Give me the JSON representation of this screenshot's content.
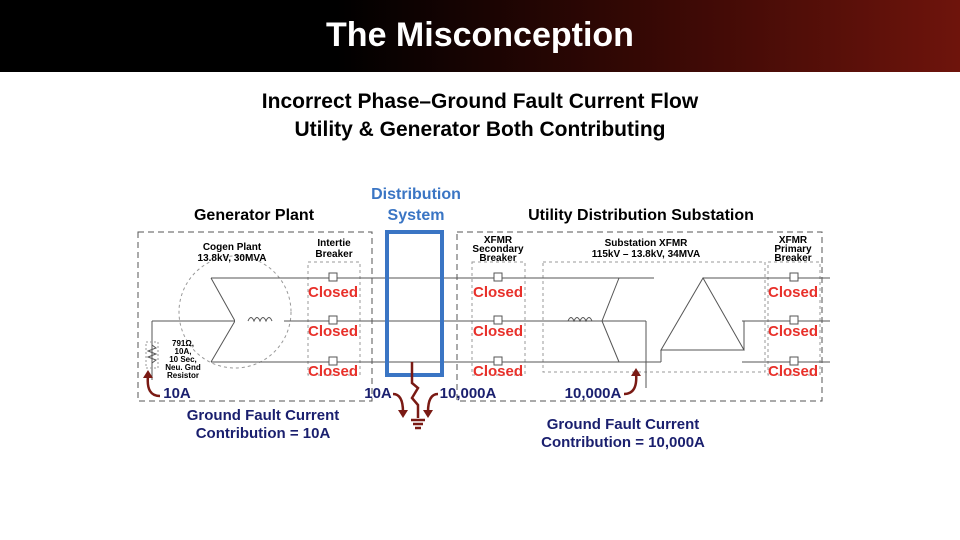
{
  "header": {
    "title": "The Misconception"
  },
  "subtitle": {
    "line1": "Incorrect Phase–Ground Fault Current Flow",
    "line2": "Utility & Generator Both Contributing"
  },
  "sections": {
    "generator_plant": "Generator Plant",
    "distribution_system": [
      "Distribution",
      "System"
    ],
    "utility_substation": "Utility Distribution Substation"
  },
  "generator": {
    "name": "Cogen Plant",
    "rating": "13.8kV, 30MVA",
    "resistor": [
      "791Ω,",
      "10A,",
      "10 Sec,",
      "Neu. Gnd",
      "Resistor"
    ]
  },
  "breakers": {
    "intertie": {
      "label": [
        "Intertie",
        "Breaker"
      ],
      "states": [
        "Closed",
        "Closed",
        "Closed"
      ]
    },
    "xfmr_secondary": {
      "label": [
        "XFMR",
        "Secondary",
        "Breaker"
      ],
      "states": [
        "Closed",
        "Closed",
        "Closed"
      ]
    },
    "xfmr_primary": {
      "label": [
        "XFMR",
        "Primary",
        "Breaker"
      ],
      "states": [
        "Closed",
        "Closed",
        "Closed"
      ]
    }
  },
  "substation_xfmr": {
    "name": "Substation XFMR",
    "rating": "115kV – 13.8kV, 34MVA"
  },
  "currents": {
    "gen_neutral": "10A",
    "fault_left": "10A",
    "fault_right": "10,000A",
    "xfmr_neutral": "10,000A"
  },
  "contributions": {
    "generator": [
      "Ground Fault Current",
      "Contribution = 10A"
    ],
    "utility": [
      "Ground Fault Current",
      "Contribution = 10,000A"
    ]
  },
  "colors": {
    "closed": "#e8302a",
    "current": "#1a1f6e",
    "distribution": "#3a75c4",
    "fault_arrow": "#7a1a14"
  }
}
